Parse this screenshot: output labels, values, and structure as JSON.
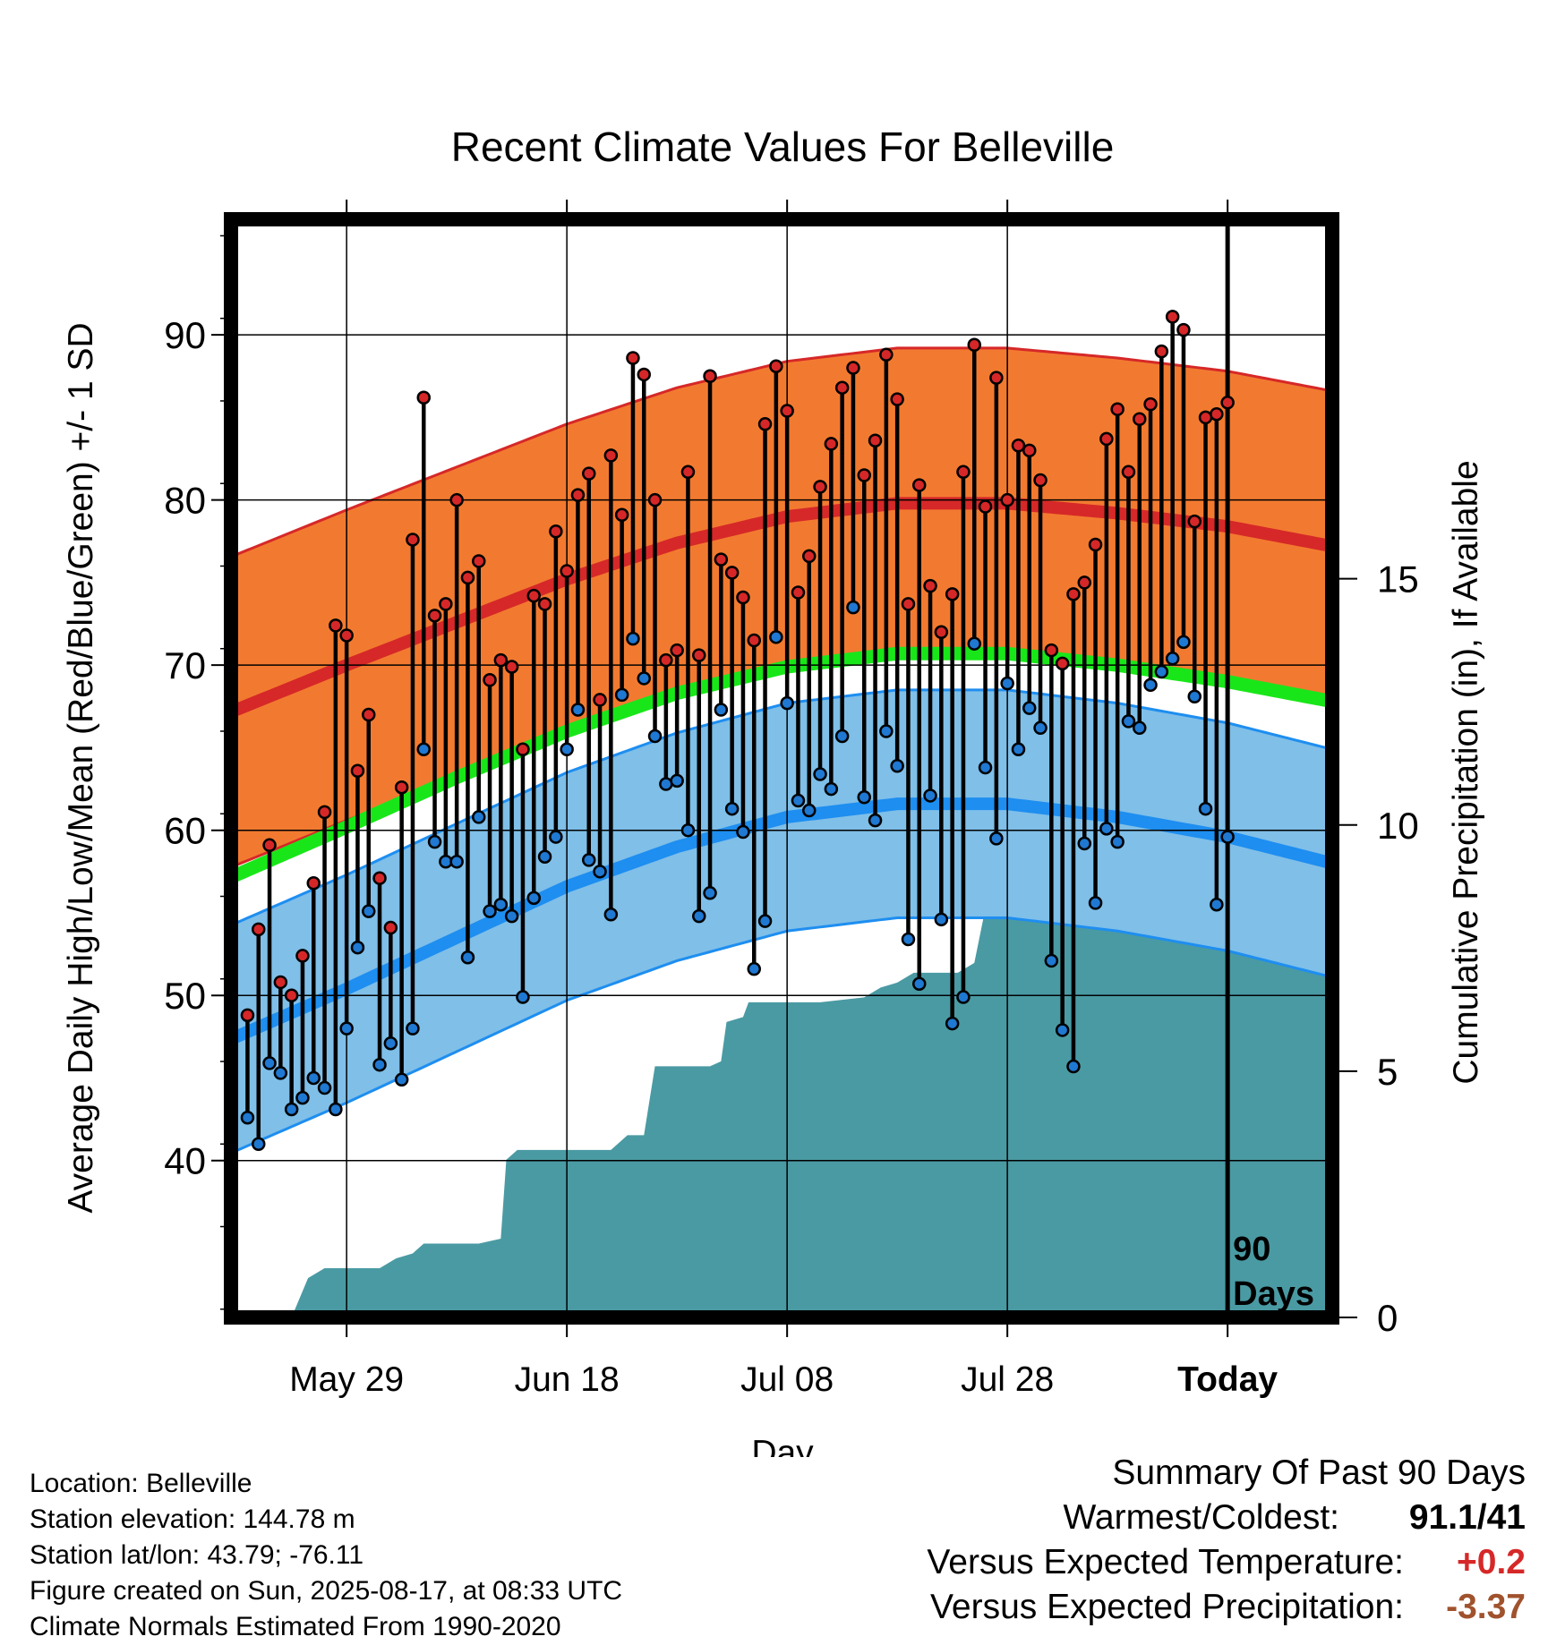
{
  "chart_data": {
    "type": "line",
    "title": "Recent Climate Values For Belleville",
    "xlabel": "Day",
    "ylabel": "Average Daily High/Low/Mean (Red/Blue/Green) +/- 1 SD",
    "ylabel_right": "Cumulative Precipitation (in), If Available",
    "x_ticks": [
      "May 29",
      "Jun 18",
      "Jul 08",
      "Jul 28",
      "Today"
    ],
    "x_tick_offsets": [
      -80,
      -60,
      -40,
      -20,
      0
    ],
    "xlim": [
      -90.5,
      9.5
    ],
    "ylim": [
      30.5,
      97
    ],
    "y_ticks": [
      40,
      50,
      60,
      70,
      80,
      90
    ],
    "ylim_right": [
      0,
      22.3
    ],
    "y_ticks_right": [
      0,
      5,
      10,
      15
    ],
    "today_marker_label": "90 Days",
    "grid": true,
    "colors": {
      "high_band": "#f27a30",
      "high_line": "#d62828",
      "low_band": "#7fbfe8",
      "low_line": "#1e8ef0",
      "mean_line": "#19e619",
      "precip": "#4a9aa3",
      "high_dot": "#d62728",
      "low_dot": "#1f78d1"
    },
    "normal_high": [
      [
        -90,
        67.3
      ],
      [
        -80,
        70.0
      ],
      [
        -70,
        72.6
      ],
      [
        -60,
        75.2
      ],
      [
        -50,
        77.4
      ],
      [
        -40,
        79.0
      ],
      [
        -30,
        79.8
      ],
      [
        -20,
        79.8
      ],
      [
        -10,
        79.2
      ],
      [
        0,
        78.4
      ],
      [
        9.5,
        77.2
      ]
    ],
    "normal_high_sd": 9.4,
    "normal_low": [
      [
        -90,
        47.5
      ],
      [
        -80,
        50.4
      ],
      [
        -70,
        53.5
      ],
      [
        -60,
        56.6
      ],
      [
        -50,
        59.0
      ],
      [
        -40,
        60.8
      ],
      [
        -30,
        61.6
      ],
      [
        -20,
        61.6
      ],
      [
        -10,
        60.8
      ],
      [
        0,
        59.6
      ],
      [
        9.5,
        58.0
      ]
    ],
    "normal_low_sd": 6.9,
    "normal_mean": [
      [
        -90,
        57.3
      ],
      [
        -80,
        60.2
      ],
      [
        -70,
        63.2
      ],
      [
        -60,
        66.0
      ],
      [
        -50,
        68.3
      ],
      [
        -40,
        69.9
      ],
      [
        -30,
        70.7
      ],
      [
        -20,
        70.7
      ],
      [
        -10,
        70.0
      ],
      [
        0,
        69.0
      ],
      [
        9.5,
        67.8
      ]
    ],
    "daily_high": [
      48.8,
      54.0,
      59.1,
      50.8,
      50.0,
      52.4,
      56.8,
      61.1,
      72.4,
      71.8,
      63.6,
      67.0,
      57.1,
      54.1,
      62.6,
      77.6,
      86.2,
      73.0,
      73.7,
      80.0,
      75.3,
      76.3,
      69.1,
      70.3,
      69.9,
      64.9,
      74.2,
      73.7,
      78.1,
      75.7,
      80.3,
      81.6,
      67.9,
      82.7,
      79.1,
      88.6,
      87.6,
      80.0,
      70.3,
      70.9,
      81.7,
      70.6,
      87.5,
      76.4,
      75.6,
      74.1,
      71.5,
      84.6,
      88.1,
      85.4,
      74.4,
      76.6,
      80.8,
      83.4,
      86.8,
      88.0,
      81.5,
      83.6,
      88.8,
      86.1,
      73.7,
      80.9,
      74.8,
      72.0,
      74.3,
      81.7,
      89.4,
      79.6,
      87.4,
      80.0,
      83.3,
      83.0,
      81.2,
      70.9,
      70.1,
      74.3,
      75.0,
      77.3,
      83.7,
      85.5,
      81.7,
      84.9,
      85.8,
      89.0,
      91.1,
      90.3,
      78.7,
      85.0,
      85.2,
      85.9
    ],
    "daily_low": [
      42.6,
      41.0,
      45.9,
      45.3,
      43.1,
      43.8,
      45.0,
      44.4,
      43.1,
      48.0,
      52.9,
      55.1,
      45.8,
      47.1,
      44.9,
      48.0,
      64.9,
      59.3,
      58.1,
      58.1,
      52.3,
      60.8,
      55.1,
      55.5,
      54.8,
      49.9,
      55.9,
      58.4,
      59.6,
      64.9,
      67.3,
      58.2,
      57.5,
      54.9,
      68.2,
      71.6,
      69.2,
      65.7,
      62.8,
      63.0,
      60.0,
      54.8,
      56.2,
      67.3,
      61.3,
      59.9,
      51.6,
      54.5,
      71.7,
      67.7,
      61.8,
      61.2,
      63.4,
      62.5,
      65.7,
      73.5,
      62.0,
      60.6,
      66.0,
      63.9,
      53.4,
      50.7,
      62.1,
      54.6,
      48.3,
      49.9,
      71.3,
      63.8,
      59.5,
      68.9,
      64.9,
      67.4,
      66.2,
      52.1,
      47.9,
      45.7,
      59.2,
      55.6,
      60.1,
      59.3,
      66.6,
      66.2,
      68.8,
      69.6,
      70.4,
      71.4,
      68.1,
      61.3,
      55.5,
      59.6
    ],
    "cumulative_precip": [
      [
        -90,
        0
      ],
      [
        -85,
        0
      ],
      [
        -83.5,
        0.8
      ],
      [
        -82,
        1.0
      ],
      [
        -77,
        1.0
      ],
      [
        -75.5,
        1.2
      ],
      [
        -74,
        1.3
      ],
      [
        -73,
        1.5
      ],
      [
        -68,
        1.5
      ],
      [
        -66,
        1.6
      ],
      [
        -65.5,
        3.2
      ],
      [
        -64.5,
        3.4
      ],
      [
        -56,
        3.4
      ],
      [
        -54.5,
        3.7
      ],
      [
        -53,
        3.7
      ],
      [
        -52,
        5.1
      ],
      [
        -47,
        5.1
      ],
      [
        -46,
        5.2
      ],
      [
        -45.5,
        6.0
      ],
      [
        -44,
        6.1
      ],
      [
        -43.5,
        6.4
      ],
      [
        -37,
        6.4
      ],
      [
        -33,
        6.5
      ],
      [
        -31.5,
        6.7
      ],
      [
        -30,
        6.8
      ],
      [
        -28.5,
        7.0
      ],
      [
        -24.5,
        7.0
      ],
      [
        -23,
        7.2
      ],
      [
        -22,
        8.3
      ],
      [
        9.5,
        8.3
      ]
    ],
    "precip_tick_labels": [
      "0",
      "5",
      "10",
      "15"
    ]
  },
  "footer": {
    "location": "Location: Belleville",
    "elevation": "Station elevation: 144.78 m",
    "latlon": "Station lat/lon: 43.79; -76.11",
    "created": "Figure created on Sun, 2025-08-17, at 08:33 UTC",
    "normals": "Climate Normals Estimated From 1990-2020"
  },
  "summary": {
    "title": "Summary Of Past 90 Days",
    "warmest_label": "Warmest/Coldest:",
    "warmest_value": "91.1/41",
    "temp_label": "Versus Expected Temperature:",
    "temp_value": "+0.2",
    "temp_color": "#d62828",
    "precip_label": "Versus Expected Precipitation:",
    "precip_value": "-3.37",
    "precip_color": "#a0522d"
  }
}
